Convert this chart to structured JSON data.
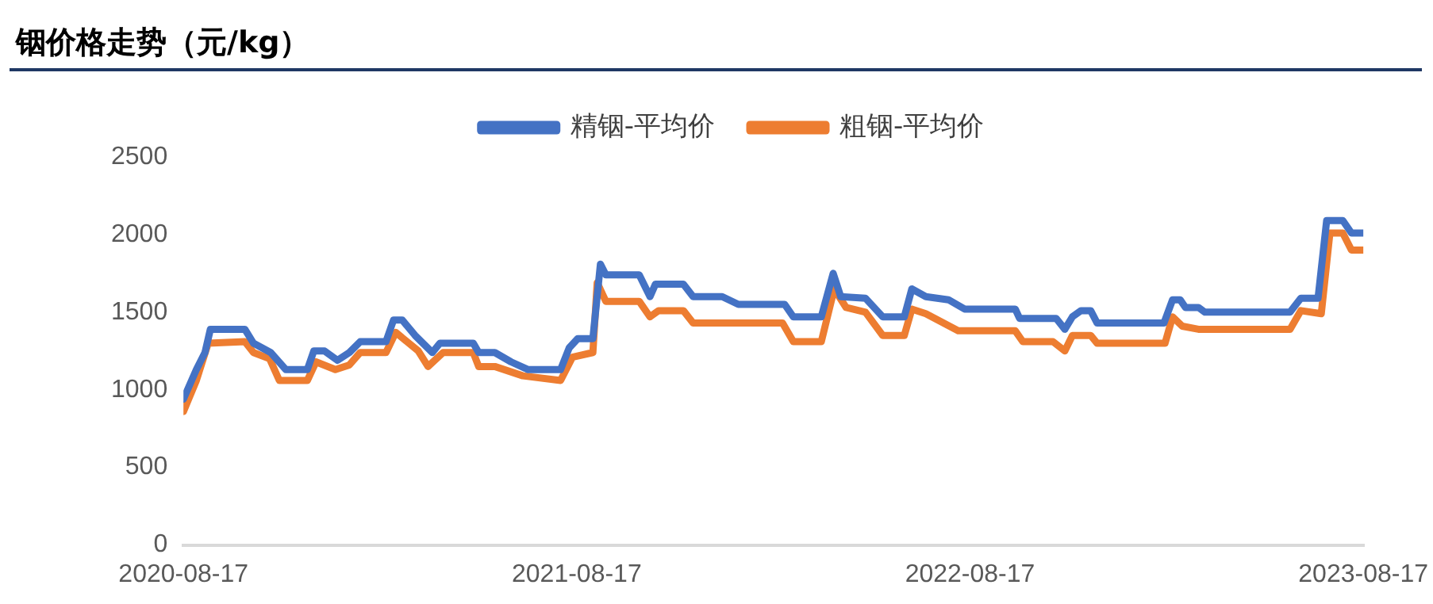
{
  "chart_data": {
    "type": "line",
    "title": "铟价格走势（元/kg）",
    "legend": "top",
    "grid": false,
    "marker": "none",
    "line_style": "solid",
    "ylim": [
      0,
      2500
    ],
    "yticks": [
      0,
      500,
      1000,
      1500,
      2000,
      2500
    ],
    "xlim": [
      "2020-08-17",
      "2023-08-17"
    ],
    "xticks": [
      {
        "value": "2020-08-17",
        "label": "2020-08-17"
      },
      {
        "value": "2021-08-17",
        "label": "2021-08-17"
      },
      {
        "value": "2022-08-17",
        "label": "2022-08-17"
      },
      {
        "value": "2023-08-17",
        "label": "2023-08-17"
      }
    ],
    "series": [
      {
        "name": "精铟-平均价",
        "color": "#4472c4",
        "x": [
          "2020-08-17",
          "2020-08-29",
          "2020-09-06",
          "2020-09-11",
          "2020-10-13",
          "2020-10-21",
          "2020-11-06",
          "2020-11-20",
          "2020-12-10",
          "2020-12-16",
          "2020-12-26",
          "2021-01-07",
          "2021-01-18",
          "2021-01-28",
          "2021-02-21",
          "2021-02-28",
          "2021-03-08",
          "2021-03-20",
          "2021-04-05",
          "2021-04-12",
          "2021-05-13",
          "2021-05-18",
          "2021-06-02",
          "2021-06-17",
          "2021-07-03",
          "2021-08-02",
          "2021-08-10",
          "2021-08-18",
          "2021-09-01",
          "2021-09-08",
          "2021-09-13",
          "2021-10-14",
          "2021-10-24",
          "2021-10-29",
          "2021-11-24",
          "2021-12-03",
          "2021-12-30",
          "2022-01-14",
          "2022-02-26",
          "2022-03-06",
          "2022-04-01",
          "2022-04-12",
          "2022-04-19",
          "2022-05-12",
          "2022-05-28",
          "2022-06-17",
          "2022-06-24",
          "2022-07-07",
          "2022-07-28",
          "2022-08-12",
          "2022-09-28",
          "2022-10-02",
          "2022-11-05",
          "2022-11-13",
          "2022-11-20",
          "2022-11-28",
          "2022-12-07",
          "2022-12-13",
          "2023-02-13",
          "2023-02-21",
          "2023-02-28",
          "2023-03-05",
          "2023-03-17",
          "2023-03-23",
          "2023-06-10",
          "2023-06-20",
          "2023-07-06",
          "2023-07-14",
          "2023-07-29",
          "2023-08-06",
          "2023-08-17"
        ],
        "values": [
          940,
          1130,
          1240,
          1390,
          1390,
          1300,
          1240,
          1130,
          1130,
          1250,
          1250,
          1190,
          1240,
          1310,
          1310,
          1450,
          1450,
          1350,
          1240,
          1300,
          1300,
          1240,
          1240,
          1180,
          1130,
          1130,
          1270,
          1330,
          1330,
          1810,
          1740,
          1740,
          1600,
          1680,
          1680,
          1600,
          1600,
          1550,
          1550,
          1470,
          1470,
          1750,
          1600,
          1590,
          1470,
          1470,
          1650,
          1600,
          1580,
          1520,
          1520,
          1460,
          1460,
          1390,
          1470,
          1510,
          1510,
          1430,
          1430,
          1580,
          1580,
          1530,
          1530,
          1500,
          1500,
          1590,
          1590,
          2090,
          2090,
          2010,
          2010
        ]
      },
      {
        "name": "粗铟-平均价",
        "color": "#ed7d31",
        "x": [
          "2020-08-17",
          "2020-08-29",
          "2020-09-09",
          "2020-10-13",
          "2020-10-21",
          "2020-11-05",
          "2020-11-14",
          "2020-12-10",
          "2020-12-18",
          "2021-01-05",
          "2021-01-18",
          "2021-01-28",
          "2021-02-21",
          "2021-03-02",
          "2021-03-23",
          "2021-04-01",
          "2021-04-15",
          "2021-05-13",
          "2021-05-18",
          "2021-06-02",
          "2021-06-28",
          "2021-08-02",
          "2021-08-13",
          "2021-09-01",
          "2021-09-05",
          "2021-09-13",
          "2021-10-14",
          "2021-10-24",
          "2021-11-01",
          "2021-11-24",
          "2021-12-03",
          "2022-02-24",
          "2022-03-06",
          "2022-04-01",
          "2022-04-13",
          "2022-04-24",
          "2022-05-12",
          "2022-05-28",
          "2022-06-17",
          "2022-06-24",
          "2022-07-07",
          "2022-08-06",
          "2022-09-28",
          "2022-10-05",
          "2022-11-02",
          "2022-11-13",
          "2022-11-20",
          "2022-12-07",
          "2022-12-13",
          "2023-02-14",
          "2023-02-21",
          "2023-03-02",
          "2023-03-17",
          "2023-06-10",
          "2023-06-20",
          "2023-07-09",
          "2023-07-17",
          "2023-07-29",
          "2023-08-06",
          "2023-08-17"
        ],
        "values": [
          860,
          1060,
          1300,
          1310,
          1240,
          1200,
          1060,
          1060,
          1180,
          1130,
          1160,
          1240,
          1240,
          1370,
          1250,
          1150,
          1240,
          1240,
          1150,
          1150,
          1090,
          1060,
          1210,
          1240,
          1690,
          1570,
          1570,
          1470,
          1510,
          1510,
          1430,
          1430,
          1310,
          1310,
          1650,
          1530,
          1500,
          1350,
          1350,
          1520,
          1490,
          1380,
          1380,
          1310,
          1310,
          1250,
          1350,
          1350,
          1300,
          1300,
          1470,
          1410,
          1390,
          1390,
          1510,
          1490,
          2010,
          2010,
          1900,
          1900
        ]
      }
    ]
  }
}
